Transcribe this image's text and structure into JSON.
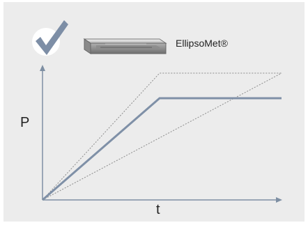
{
  "colors": {
    "background": "#ececec",
    "axis": "#7e8fa3",
    "main_curve": "#7f90a7",
    "guide_line": "#8c8c8c",
    "check_circle": "#ffffff",
    "check_mark": "#7d8ea6"
  },
  "icons": {
    "check": "check-icon",
    "product": "ellipsomet-slab-icon"
  },
  "diagram": {
    "product_name": "EllipsoMet®",
    "y_axis_label": "P",
    "x_axis_label": "t"
  }
}
